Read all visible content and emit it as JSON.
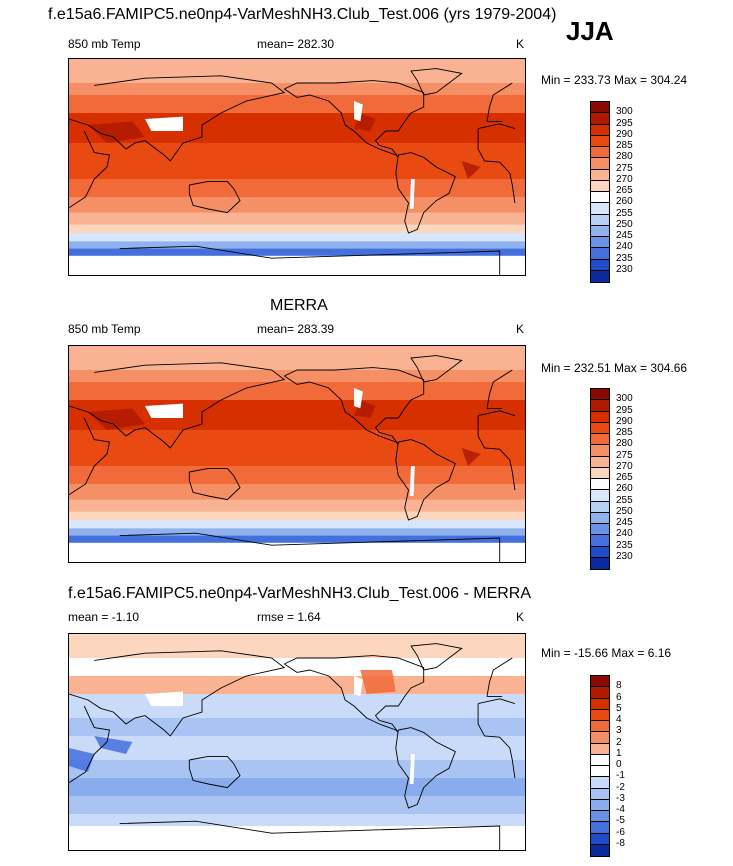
{
  "figure": {
    "title": "f.e15a6.FAMIPC5.ne0np4-VarMeshNH3.Club_Test.006 (yrs 1979-2004)",
    "season": "JJA"
  },
  "panels": [
    {
      "id": "model",
      "header": "",
      "left_label": "850 mb Temp",
      "center_label": "mean= 282.30",
      "right_label": "K",
      "minmax": "Min = 233.73 Max = 304.24"
    },
    {
      "id": "obs",
      "header": "MERRA",
      "left_label": "850 mb Temp",
      "center_label": "mean= 283.39",
      "right_label": "K",
      "minmax": "Min = 232.51 Max = 304.66"
    },
    {
      "id": "diff",
      "header": "f.e15a6.FAMIPC5.ne0np4-VarMeshNH3.Club_Test.006 - MERRA",
      "left_label": "mean =  -1.10",
      "center_label": "rmse =   1.64",
      "right_label": "K",
      "minmax": "Min = -15.66 Max =   6.16"
    }
  ],
  "colorbars": {
    "temperature": {
      "labels": [
        "300",
        "295",
        "290",
        "285",
        "280",
        "275",
        "270",
        "265",
        "260",
        "255",
        "250",
        "245",
        "240",
        "235",
        "230"
      ],
      "colors": [
        "#8b0a00",
        "#b01a00",
        "#d62f00",
        "#e84a12",
        "#f06a3a",
        "#f58f66",
        "#f9b393",
        "#fcd6bf",
        "#ffffff",
        "#d8e6fb",
        "#b7cff5",
        "#8fb1ee",
        "#6a92e6",
        "#4470de",
        "#1f4cc8",
        "#0a2a9e"
      ]
    },
    "difference": {
      "labels": [
        "8",
        "6",
        "5",
        "4",
        "3",
        "2",
        "1",
        "0",
        "-1",
        "-2",
        "-3",
        "-4",
        "-5",
        "-6",
        "-8"
      ],
      "colors": [
        "#8b0a00",
        "#b01a00",
        "#d62f00",
        "#e84a12",
        "#f06a3a",
        "#f58f66",
        "#f9b393",
        "#ffffff",
        "#ffffff",
        "#c9dbf8",
        "#a9c4f3",
        "#88acec",
        "#6790e4",
        "#4470de",
        "#1f4cc8",
        "#0a2a9e"
      ]
    }
  },
  "chart_data": [
    {
      "type": "heatmap",
      "title": "850 mb Temp",
      "subtitle": "mean= 282.30",
      "units": "K",
      "color_levels": [
        230,
        235,
        240,
        245,
        250,
        255,
        260,
        265,
        270,
        275,
        280,
        285,
        290,
        295,
        300
      ],
      "min": 233.73,
      "max": 304.24,
      "mean": 282.3
    },
    {
      "type": "heatmap",
      "title": "850 mb Temp",
      "subtitle": "mean= 283.39",
      "units": "K",
      "color_levels": [
        230,
        235,
        240,
        245,
        250,
        255,
        260,
        265,
        270,
        275,
        280,
        285,
        290,
        295,
        300
      ],
      "min": 232.51,
      "max": 304.66,
      "mean": 283.39
    },
    {
      "type": "heatmap",
      "title": "f.e15a6.FAMIPC5.ne0np4-VarMeshNH3.Club_Test.006 - MERRA",
      "units": "K",
      "color_levels": [
        -8,
        -6,
        -5,
        -4,
        -3,
        -2,
        -1,
        0,
        1,
        2,
        3,
        4,
        5,
        6,
        8
      ],
      "min": -15.66,
      "max": 6.16,
      "mean": -1.1,
      "rmse": 1.64
    }
  ]
}
